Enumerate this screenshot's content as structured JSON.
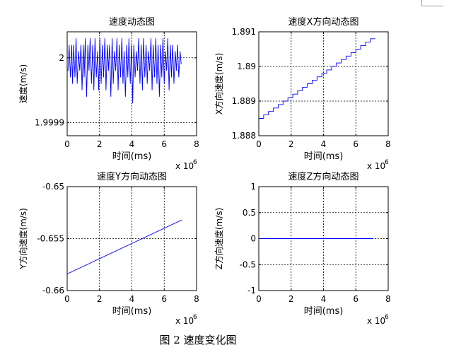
{
  "caption": "图 2  速度变化图",
  "chart_data": [
    {
      "type": "line",
      "title": "速度动态图",
      "xlabel": "时间(ms)",
      "ylabel": "速度(m/s)",
      "xlim": [
        0,
        8
      ],
      "ylim": [
        1.99988,
        2.00004
      ],
      "x_ticks": [
        0,
        2,
        4,
        6,
        8
      ],
      "y_ticks": [
        1.9999,
        2
      ],
      "y_tick_labels": [
        "1.9999",
        "2"
      ],
      "x_exponent": "x 10",
      "x_exponent_power": "6",
      "grid": true,
      "series": [
        {
          "color": "#0000ff",
          "x": [
            0.05,
            0.12,
            0.2,
            0.28,
            0.33,
            0.4,
            0.48,
            0.55,
            0.62,
            0.7,
            0.78,
            0.85,
            0.92,
            1.0,
            1.05,
            1.12,
            1.2,
            1.28,
            1.35,
            1.42,
            1.5,
            1.58,
            1.65,
            1.72,
            1.8,
            1.88,
            1.95,
            2.02,
            2.1,
            2.18,
            2.25,
            2.33,
            2.4,
            2.48,
            2.55,
            2.62,
            2.7,
            2.78,
            2.85,
            2.92,
            3.0,
            3.08,
            3.15,
            3.22,
            3.3,
            3.38,
            3.45,
            3.52,
            3.6,
            3.68,
            3.75,
            3.82,
            3.9,
            3.98,
            4.05,
            4.12,
            4.2,
            4.28,
            4.35,
            4.42,
            4.5,
            4.58,
            4.65,
            4.72,
            4.8,
            4.88,
            4.95,
            5.02,
            5.1,
            5.18,
            5.25,
            5.32,
            5.4,
            5.48,
            5.55,
            5.62,
            5.7,
            5.78,
            5.85,
            5.92,
            6.0,
            6.08,
            6.15,
            6.22,
            6.3,
            6.38,
            6.45,
            6.52,
            6.6,
            6.68,
            6.75,
            6.82,
            6.9,
            6.98,
            7.05
          ],
          "y": [
            1.99998,
            2.00002,
            1.99997,
            2.00002,
            1.99996,
            2.00002,
            1.99997,
            2.00003,
            1.99996,
            2.00001,
            1.99998,
            2.00002,
            1.99995,
            2.00002,
            1.99997,
            2.00003,
            1.99994,
            2.00002,
            1.99998,
            2.00003,
            1.99996,
            2.00002,
            1.99995,
            2.00003,
            1.99997,
            2.00001,
            1.99995,
            2.00003,
            1.99996,
            2.00002,
            1.99997,
            2.00003,
            1.99995,
            2.00002,
            1.99998,
            2.00002,
            1.99994,
            2.00003,
            1.99996,
            2.00001,
            1.99998,
            2.00003,
            1.99995,
            2.00002,
            1.99997,
            2.00003,
            1.99996,
            2.00001,
            1.99994,
            2.00002,
            1.99997,
            2.00003,
            1.99996,
            2.00002,
            1.99993,
            2.00002,
            1.99997,
            2.00001,
            1.99998,
            2.00003,
            1.99996,
            2.00002,
            1.99995,
            2.00003,
            1.99997,
            2.00002,
            1.99996,
            2.00001,
            1.99998,
            2.00003,
            1.99995,
            2.00002,
            1.99997,
            2.00003,
            1.99996,
            2.00002,
            1.99994,
            2.00002,
            1.99997,
            2.00003,
            1.99996,
            2.00001,
            1.99998,
            2.00003,
            1.99995,
            2.00002,
            1.99997,
            2.00002,
            1.99996,
            2.00001,
            1.99998,
            2.00002,
            1.99997,
            2.00001,
            1.99999
          ]
        }
      ]
    },
    {
      "type": "line",
      "title": "速度X方向动态图",
      "xlabel": "时间(ms)",
      "ylabel": "X方向速度(m/s)",
      "xlim": [
        0,
        8
      ],
      "ylim": [
        1.888,
        1.891
      ],
      "x_ticks": [
        0,
        2,
        4,
        6,
        8
      ],
      "y_ticks": [
        1.888,
        1.889,
        1.89,
        1.891
      ],
      "y_tick_labels": [
        "1.888",
        "1.889",
        "1.89",
        "1.891"
      ],
      "x_exponent": "x 10",
      "x_exponent_power": "6",
      "grid": true,
      "series": [
        {
          "color": "#0000ff",
          "x": [
            0.0,
            0.3,
            0.3,
            0.6,
            0.6,
            0.9,
            0.9,
            1.2,
            1.2,
            1.5,
            1.5,
            1.8,
            1.8,
            2.1,
            2.1,
            2.4,
            2.4,
            2.7,
            2.7,
            3.0,
            3.0,
            3.3,
            3.3,
            3.6,
            3.6,
            3.9,
            3.9,
            4.2,
            4.2,
            4.5,
            4.5,
            4.8,
            4.8,
            5.1,
            5.1,
            5.4,
            5.4,
            5.7,
            5.7,
            6.0,
            6.0,
            6.3,
            6.3,
            6.6,
            6.6,
            6.9,
            6.9,
            7.2
          ],
          "y": [
            1.8885,
            1.8885,
            1.8886,
            1.8886,
            1.8887,
            1.8887,
            1.8888,
            1.8888,
            1.8889,
            1.8889,
            1.889,
            1.889,
            1.8891,
            1.8891,
            1.8892,
            1.8892,
            1.8893,
            1.8893,
            1.8894,
            1.8894,
            1.8895,
            1.8895,
            1.8896,
            1.8896,
            1.8897,
            1.8897,
            1.8898,
            1.8898,
            1.8899,
            1.8899,
            1.89,
            1.89,
            1.8901,
            1.8901,
            1.8902,
            1.8902,
            1.8903,
            1.8903,
            1.8904,
            1.8904,
            1.8905,
            1.8905,
            1.8906,
            1.8906,
            1.8907,
            1.8907,
            1.8908,
            1.8908
          ]
        }
      ]
    },
    {
      "type": "line",
      "title": "速度Y方向动态图",
      "xlabel": "时间(ms)",
      "ylabel": "Y方向速度(m/s)",
      "xlim": [
        0,
        8
      ],
      "ylim": [
        -0.66,
        -0.65
      ],
      "x_ticks": [
        0,
        2,
        4,
        6,
        8
      ],
      "y_ticks": [
        -0.66,
        -0.655,
        -0.65
      ],
      "y_tick_labels": [
        "-0.66",
        "-0.655",
        "-0.65"
      ],
      "x_exponent": "x 10",
      "x_exponent_power": "6",
      "grid": true,
      "series": [
        {
          "color": "#0000ff",
          "x": [
            0,
            7.1
          ],
          "y": [
            -0.6584,
            -0.6532
          ]
        }
      ]
    },
    {
      "type": "line",
      "title": "速度Z方向动态图",
      "xlabel": "时间(ms)",
      "ylabel": "Z方向速度(m/s)",
      "xlim": [
        0,
        8
      ],
      "ylim": [
        -1,
        1
      ],
      "x_ticks": [
        0,
        2,
        4,
        6,
        8
      ],
      "y_ticks": [
        -1,
        -0.5,
        0,
        0.5,
        1
      ],
      "y_tick_labels": [
        "-1",
        "-0.5",
        "0",
        "0.5",
        "1"
      ],
      "x_exponent": "x 10",
      "x_exponent_power": "6",
      "grid": true,
      "series": [
        {
          "color": "#0000ff",
          "x": [
            0,
            7.1
          ],
          "y": [
            0,
            0
          ]
        }
      ]
    }
  ]
}
